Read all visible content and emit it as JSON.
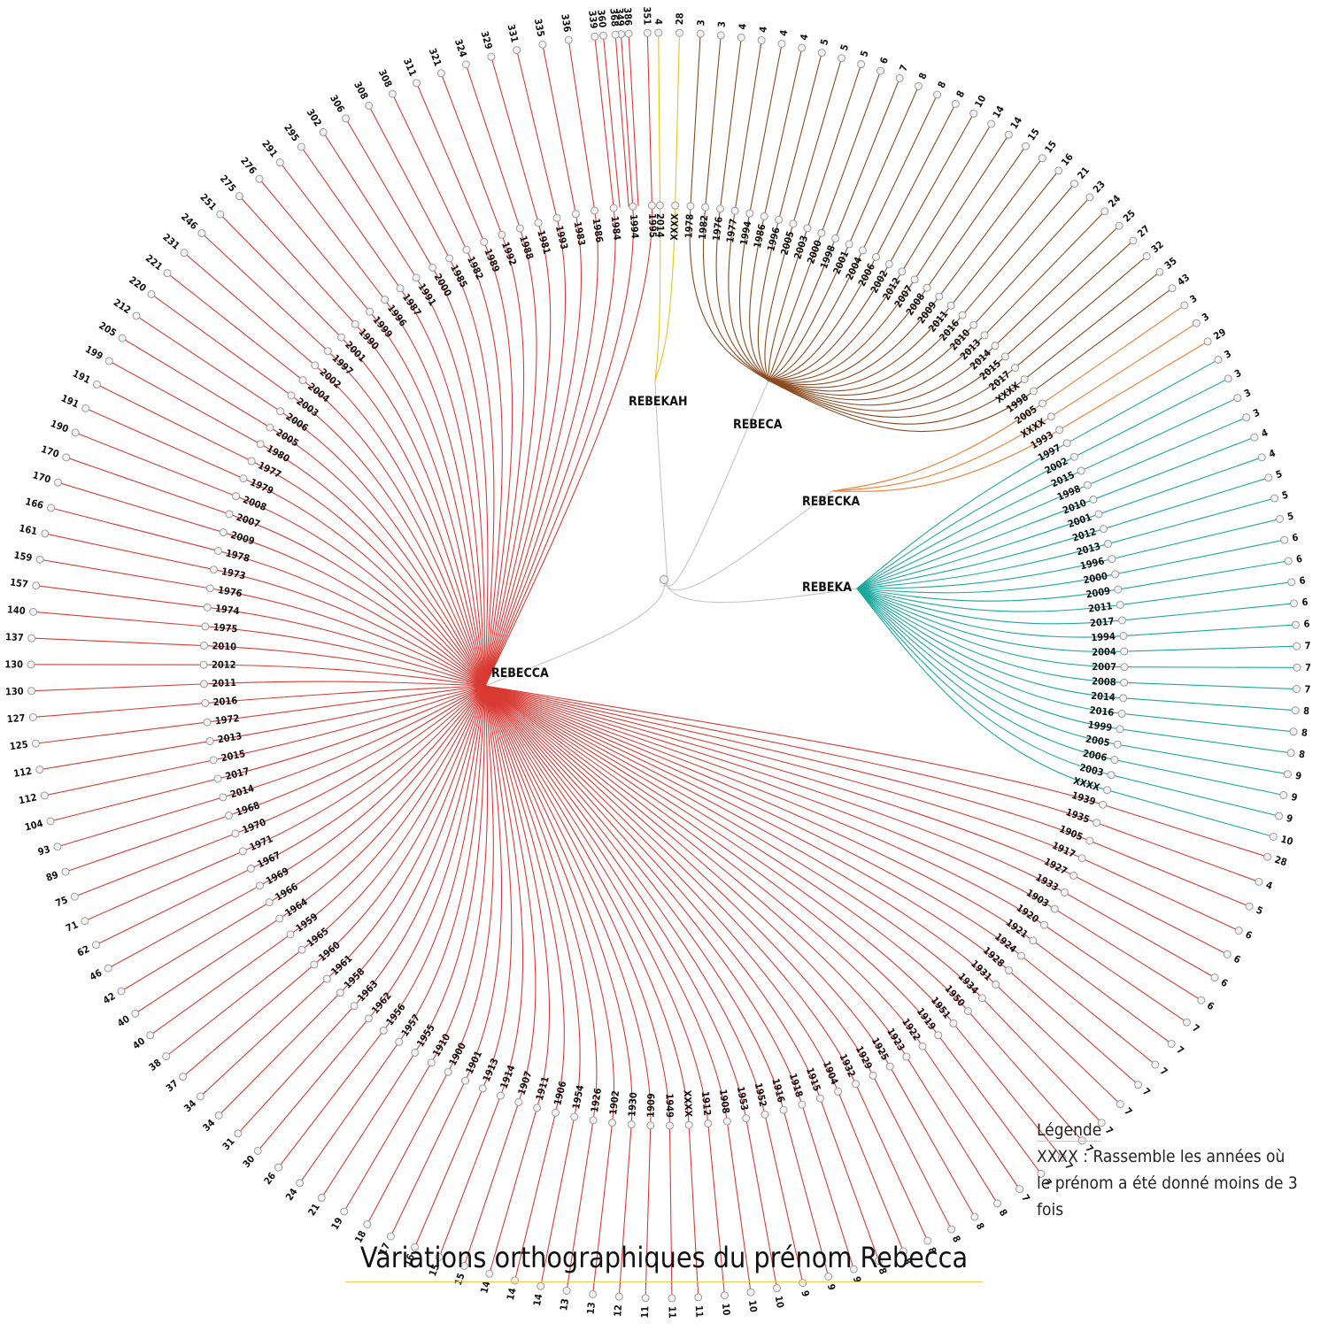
{
  "title": "Variations orthographiques du prénom Rebecca",
  "legend": {
    "title": "Légende",
    "text": "XXXX : Rassemble les années où le prénom a été donné moins de 3 fois"
  },
  "chart_data": {
    "type": "radial-dendrogram",
    "root": "Rebecca",
    "groups": [
      {
        "name": "REBEKAH",
        "color": "#e8c21c",
        "leaves": [
          [
            "2014",
            4
          ],
          [
            "XXXX",
            28
          ]
        ]
      },
      {
        "name": "REBECA",
        "color": "#8b4a1f",
        "leaves": [
          [
            "1978",
            3
          ],
          [
            "1982",
            3
          ],
          [
            "1976",
            4
          ],
          [
            "1977",
            4
          ],
          [
            "1994",
            4
          ],
          [
            "1986",
            4
          ],
          [
            "1996",
            5
          ],
          [
            "2005",
            5
          ],
          [
            "2003",
            5
          ],
          [
            "2000",
            6
          ],
          [
            "1998",
            7
          ],
          [
            "2001",
            8
          ],
          [
            "2004",
            8
          ],
          [
            "2006",
            8
          ],
          [
            "2002",
            10
          ],
          [
            "2012",
            14
          ],
          [
            "2007",
            14
          ],
          [
            "2008",
            15
          ],
          [
            "2009",
            15
          ],
          [
            "2011",
            16
          ],
          [
            "2016",
            21
          ],
          [
            "2010",
            23
          ],
          [
            "2013",
            24
          ],
          [
            "2014",
            25
          ],
          [
            "2015",
            27
          ],
          [
            "2017",
            32
          ],
          [
            "XXXX",
            35
          ],
          [
            "1998",
            43
          ]
        ]
      },
      {
        "name": "REBECKA",
        "color": "#ee7b30",
        "leaves": [
          [
            "2005",
            3
          ],
          [
            "XXXX",
            3
          ],
          [
            "1993",
            29
          ]
        ]
      },
      {
        "name": "REBEKA",
        "color": "#1aa89a",
        "leaves": [
          [
            "1997",
            3
          ],
          [
            "2002",
            3
          ],
          [
            "2015",
            3
          ],
          [
            "1998",
            3
          ],
          [
            "2010",
            4
          ],
          [
            "2001",
            4
          ],
          [
            "2012",
            5
          ],
          [
            "2013",
            5
          ],
          [
            "1996",
            5
          ],
          [
            "2000",
            6
          ],
          [
            "2009",
            6
          ],
          [
            "2011",
            6
          ],
          [
            "2017",
            6
          ],
          [
            "1994",
            6
          ],
          [
            "2004",
            7
          ],
          [
            "2007",
            7
          ],
          [
            "2008",
            7
          ],
          [
            "2014",
            8
          ],
          [
            "2016",
            8
          ],
          [
            "1999",
            8
          ],
          [
            "2005",
            9
          ],
          [
            "2006",
            9
          ],
          [
            "2003",
            9
          ],
          [
            "XXXX",
            10
          ]
        ]
      },
      {
        "name": "REBECCA",
        "color": "#d93b34",
        "leaves": [
          [
            "1939",
            28
          ],
          [
            "1935",
            4
          ],
          [
            "1905",
            5
          ],
          [
            "1917",
            6
          ],
          [
            "1927",
            6
          ],
          [
            "1933",
            6
          ],
          [
            "1903",
            6
          ],
          [
            "1920",
            7
          ],
          [
            "1921",
            7
          ],
          [
            "1924",
            7
          ],
          [
            "1928",
            7
          ],
          [
            "1931",
            7
          ],
          [
            "1934",
            7
          ],
          [
            "1950",
            7
          ],
          [
            "1951",
            7
          ],
          [
            "1919",
            7
          ],
          [
            "1922",
            7
          ],
          [
            "1923",
            8
          ],
          [
            "1925",
            8
          ],
          [
            "1929",
            8
          ],
          [
            "1932",
            8
          ],
          [
            "1904",
            8
          ],
          [
            "1915",
            8
          ],
          [
            "1918",
            9
          ],
          [
            "1916",
            9
          ],
          [
            "1952",
            9
          ],
          [
            "1953",
            10
          ],
          [
            "1908",
            10
          ],
          [
            "1912",
            10
          ],
          [
            "XXXX",
            11
          ],
          [
            "1949",
            11
          ],
          [
            "1909",
            11
          ],
          [
            "1930",
            12
          ],
          [
            "1902",
            13
          ],
          [
            "1926",
            13
          ],
          [
            "1954",
            14
          ],
          [
            "1906",
            14
          ],
          [
            "1911",
            14
          ],
          [
            "1907",
            15
          ],
          [
            "1914",
            15
          ],
          [
            "1913",
            16
          ],
          [
            "1901",
            17
          ],
          [
            "1900",
            18
          ],
          [
            "1910",
            19
          ],
          [
            "1955",
            21
          ],
          [
            "1957",
            24
          ],
          [
            "1956",
            26
          ],
          [
            "1962",
            30
          ],
          [
            "1963",
            31
          ],
          [
            "1958",
            34
          ],
          [
            "1961",
            34
          ],
          [
            "1960",
            37
          ],
          [
            "1965",
            38
          ],
          [
            "1959",
            40
          ],
          [
            "1964",
            40
          ],
          [
            "1966",
            42
          ],
          [
            "1969",
            46
          ],
          [
            "1967",
            62
          ],
          [
            "1971",
            71
          ],
          [
            "1970",
            75
          ],
          [
            "1968",
            89
          ],
          [
            "2014",
            93
          ],
          [
            "2017",
            104
          ],
          [
            "2015",
            112
          ],
          [
            "2013",
            112
          ],
          [
            "1972",
            125
          ],
          [
            "2016",
            127
          ],
          [
            "2011",
            130
          ],
          [
            "2012",
            130
          ],
          [
            "2010",
            137
          ],
          [
            "1975",
            140
          ],
          [
            "1974",
            157
          ],
          [
            "1976",
            159
          ],
          [
            "1973",
            161
          ],
          [
            "1978",
            166
          ],
          [
            "2009",
            170
          ],
          [
            "2007",
            170
          ],
          [
            "2008",
            190
          ],
          [
            "1979",
            191
          ],
          [
            "1977",
            191
          ],
          [
            "1980",
            199
          ],
          [
            "2005",
            205
          ],
          [
            "2006",
            212
          ],
          [
            "2003",
            220
          ],
          [
            "2004",
            221
          ],
          [
            "2002",
            231
          ],
          [
            "1997",
            246
          ],
          [
            "2001",
            251
          ],
          [
            "1990",
            275
          ],
          [
            "1999",
            276
          ],
          [
            "1996",
            291
          ],
          [
            "1987",
            295
          ],
          [
            "1991",
            302
          ],
          [
            "2000",
            306
          ],
          [
            "1985",
            308
          ],
          [
            "1982",
            308
          ],
          [
            "1989",
            311
          ],
          [
            "1992",
            321
          ],
          [
            "1988",
            324
          ],
          [
            "1981",
            329
          ],
          [
            "1993",
            331
          ],
          [
            "1983",
            335
          ],
          [
            "1986",
            336
          ],
          [
            "1984",
            339
          ],
          [
            "1994",
            349
          ],
          [
            "1995",
            351
          ]
        ]
      }
    ],
    "extra_outer_labels": [
      "360",
      "368",
      "386"
    ]
  }
}
